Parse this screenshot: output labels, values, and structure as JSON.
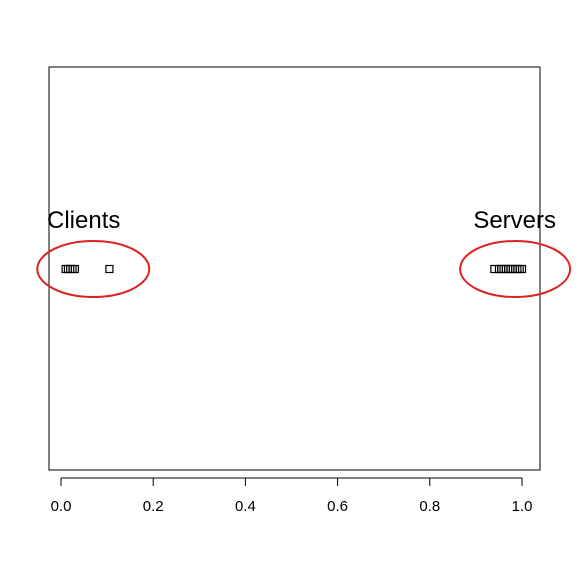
{
  "chart_data": {
    "type": "scatter",
    "title": "",
    "xlabel": "",
    "ylabel": "",
    "xlim": [
      -0.02,
      1.03
    ],
    "x_ticks": [
      0.0,
      0.2,
      0.4,
      0.6,
      0.8,
      1.0
    ],
    "x_tick_labels": [
      "0.0",
      "0.2",
      "0.4",
      "0.6",
      "0.8",
      "1.0"
    ],
    "y_axis": "none",
    "grid": false,
    "marker": "open-square",
    "series": [
      {
        "x": [
          0.01,
          0.015,
          0.02,
          0.025,
          0.03,
          0.105,
          0.94,
          0.95,
          0.955,
          0.96,
          0.965,
          0.97,
          0.975,
          0.98,
          0.985,
          0.99,
          0.995,
          1.0
        ]
      }
    ],
    "annotations": [
      {
        "text": "Clients",
        "x": 0.07,
        "highlight_color": "#dd2222"
      },
      {
        "text": "Servers",
        "x": 0.985,
        "highlight_color": "#dd2222"
      }
    ]
  }
}
